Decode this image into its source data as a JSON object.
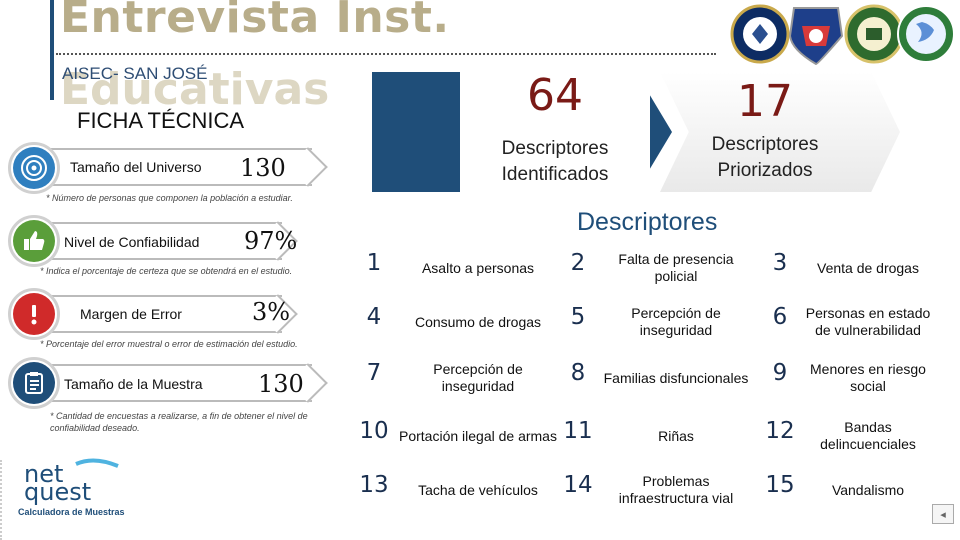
{
  "header": {
    "title": "Entrevista Inst.",
    "title_ghost": "Educativas",
    "subtitle": "AISEC- SAN JOSÉ",
    "section": "FICHA TÉCNICA"
  },
  "ficha": {
    "universo": {
      "label": "Tamaño del Universo",
      "value": "130",
      "note": "* Número de personas que componen la población a estudiar."
    },
    "confiabilidad": {
      "label": "Nivel de Confiabilidad",
      "value": "97%",
      "note": "* Indica el porcentaje de certeza que se obtendrá en el estudio."
    },
    "error": {
      "label": "Margen de Error",
      "value": "3%",
      "note": "* Porcentaje del error muestral o error de estimación del estudio."
    },
    "muestra": {
      "label": "Tamaño de la Muestra",
      "value": "130",
      "note": "* Cantidad de encuestas a realizarse, a fin de obtener el nivel de confiabilidad deseado."
    }
  },
  "stats": {
    "identificados": {
      "number": "64",
      "label": "Descriptores Identificados"
    },
    "priorizados": {
      "number": "17",
      "label": "Descriptores Priorizados"
    }
  },
  "descriptores": {
    "title": "Descriptores",
    "items": [
      {
        "n": "1",
        "text": "Asalto a personas"
      },
      {
        "n": "2",
        "text": "Falta de presencia policial"
      },
      {
        "n": "3",
        "text": "Venta de drogas"
      },
      {
        "n": "4",
        "text": "Consumo de drogas"
      },
      {
        "n": "5",
        "text": "Percepción de inseguridad"
      },
      {
        "n": "6",
        "text": "Personas en estado de vulnerabilidad"
      },
      {
        "n": "7",
        "text": "Percepción de inseguridad"
      },
      {
        "n": "8",
        "text": "Familias disfuncionales"
      },
      {
        "n": "9",
        "text": "Menores en riesgo social"
      },
      {
        "n": "10",
        "text": "Portación ilegal de armas"
      },
      {
        "n": "11",
        "text": "Riñas"
      },
      {
        "n": "12",
        "text": "Bandas delincuenciales"
      },
      {
        "n": "13",
        "text": "Tacha de vehículos"
      },
      {
        "n": "14",
        "text": "Problemas infraestructura vial"
      },
      {
        "n": "15",
        "text": "Vandalismo"
      }
    ]
  },
  "logo": {
    "brand_top": "net",
    "brand_bottom": "quest",
    "caption": "Calculadora de Muestras"
  },
  "icons": {
    "universo": "target-icon",
    "confiabilidad": "thumbs-up-icon",
    "error": "exclamation-icon",
    "muestra": "clipboard-icon"
  },
  "colors": {
    "title": "#b8ad8a",
    "navy": "#1f4e79",
    "stat_number": "#7a1a16",
    "icon_blue": "#2f7fbf",
    "icon_green": "#5a9e3a",
    "icon_red": "#d02a2a",
    "icon_navy": "#1f4e79"
  }
}
